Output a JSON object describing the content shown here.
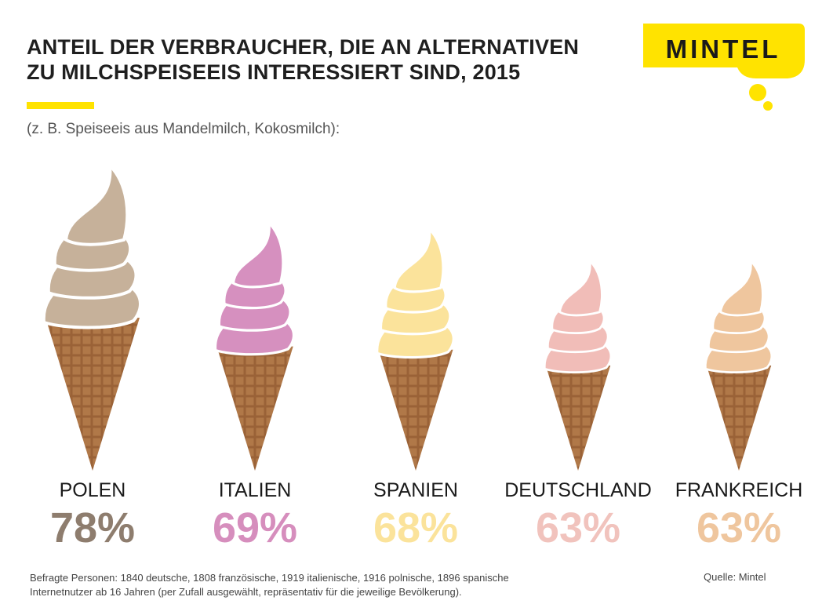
{
  "title_lines": [
    "ANTEIL DER VERBRAUCHER, DIE AN ALTERNATIVEN",
    "ZU MILCHSPEISEEIS INTERESSIERT SIND, 2015"
  ],
  "subtitle": "(z. B. Speiseeis aus Mandelmilch, Kokosmilch):",
  "logo": {
    "text": "MINTEL",
    "color": "#ffe300"
  },
  "chart_data": {
    "type": "bar",
    "title": "ANTEIL DER VERBRAUCHER, DIE AN ALTERNATIVEN ZU MILCHSPEISEEIS INTERESSIERT SIND, 2015",
    "categories": [
      "POLEN",
      "ITALIEN",
      "SPANIEN",
      "DEUTSCHLAND",
      "FRANKREICH"
    ],
    "values": [
      78,
      69,
      68,
      63,
      63
    ],
    "labels": [
      "78%",
      "69%",
      "68%",
      "63%",
      "63%"
    ],
    "unit": "%",
    "colors": {
      "POLEN": "#c6b19a",
      "ITALIEN": "#d690bf",
      "SPANIEN": "#fbe39b",
      "DEUTSCHLAND": "#f1bdb8",
      "FRANKREICH": "#efc69e"
    },
    "value_text_colors": {
      "POLEN": "#8e7d6e",
      "ITALIEN": "#d68ebd",
      "SPANIEN": "#fbe39b",
      "DEUTSCHLAND": "#f1c3bd",
      "FRANKREICH": "#efc69e"
    },
    "cone_color": "#9a6237",
    "grid": false,
    "legend": "none"
  },
  "footnote_lines": [
    "Befragte Personen: 1840 deutsche, 1808 französische, 1919 italienische, 1916 polnische, 1896 spanische",
    "Internetnutzer ab 16 Jahren (per Zufall ausgewählt, repräsentativ für die jeweilige Bevölkerung)."
  ],
  "source": "Quelle: Mintel"
}
